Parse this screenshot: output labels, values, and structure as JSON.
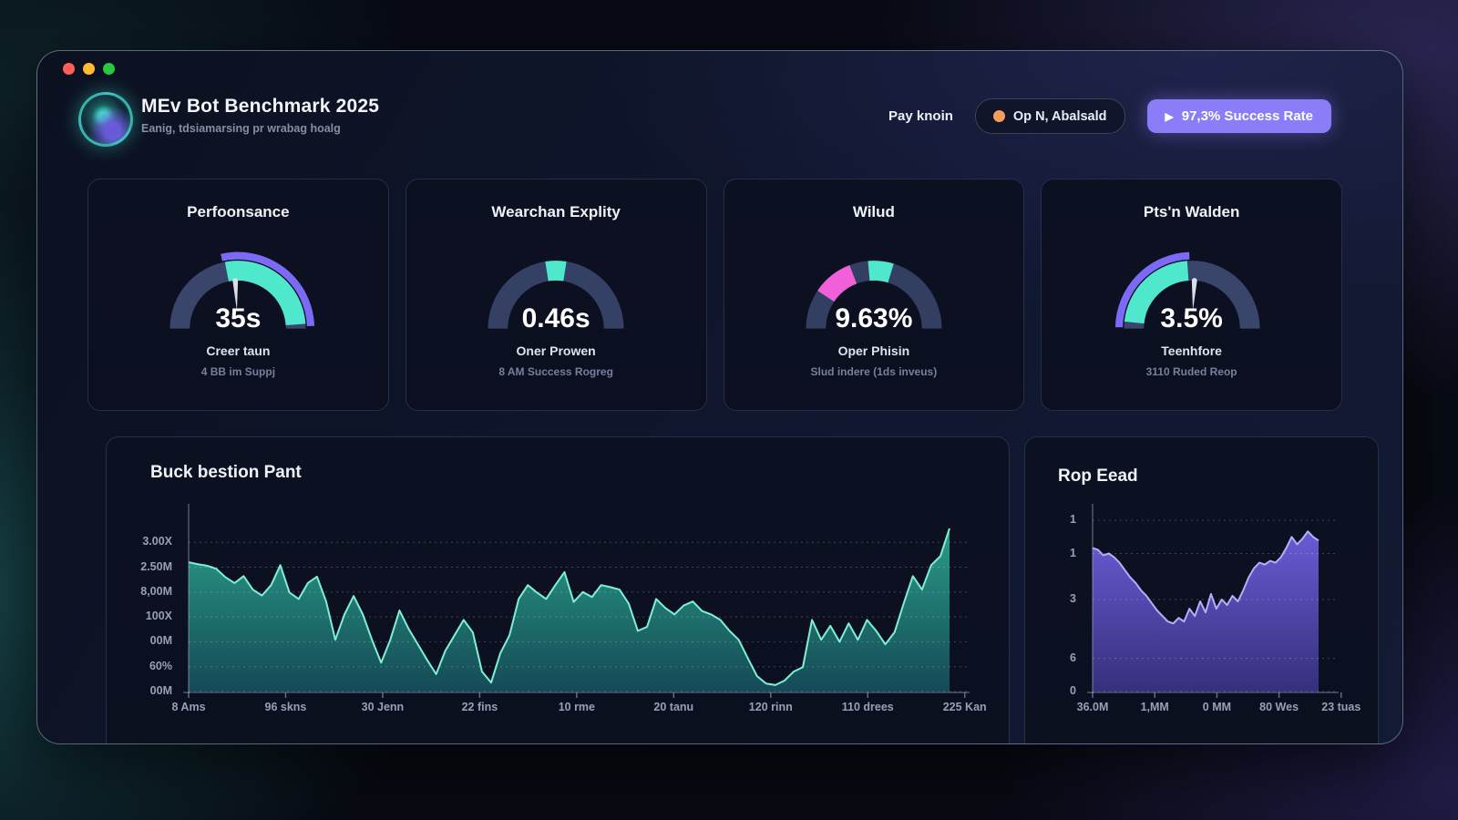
{
  "window_controls": {
    "colors": [
      "#ff5f57",
      "#febc2e",
      "#28c840"
    ]
  },
  "header": {
    "title": "MEv Bot Benchmark 2025",
    "subtitle": "Eanig, tdsiamarsing pr wrabag hoalg",
    "nav_label": "Pay knoin",
    "badge_label": "Op N, Abalsald",
    "badge_dot_color": "#f59e5b",
    "play_icon": "▶",
    "success_label": "97,3% Success Rate",
    "accent_color": "#8b7cf8"
  },
  "cards": [
    {
      "title": "Perfoonsance",
      "value": "35s",
      "subtitle": "Creer taun",
      "note": "4 BB im Suppj",
      "gauge": {
        "segments": [
          {
            "band": "main",
            "from": 180,
            "to": 0,
            "color": "#39456a"
          },
          {
            "band": "outer",
            "from": 103,
            "to": 2,
            "color": "#7c6af7"
          },
          {
            "band": "main",
            "from": 101,
            "to": 4,
            "color": "#4fe8cd"
          }
        ],
        "needle": 93
      }
    },
    {
      "title": "Wearchan Explity",
      "value": "0.46s",
      "subtitle": "Oner Prowen",
      "note": "8 AM Success Rogreg",
      "gauge": {
        "segments": [
          {
            "band": "main",
            "from": 180,
            "to": 0,
            "color": "#354164"
          },
          {
            "band": "main",
            "from": 99,
            "to": 81,
            "color": "#4fe8cd"
          }
        ],
        "needle": null
      }
    },
    {
      "title": "Wilud",
      "value": "9.63%",
      "subtitle": "Oper Phisin",
      "note": "Slud indere (1ds inveus)",
      "gauge": {
        "segments": [
          {
            "band": "main",
            "from": 180,
            "to": 0,
            "color": "#333f60"
          },
          {
            "band": "main",
            "from": 146,
            "to": 111,
            "color": "#f060d8"
          },
          {
            "band": "main",
            "from": 95,
            "to": 73,
            "color": "#4fe8cd"
          }
        ],
        "needle": null
      }
    },
    {
      "title": "Pts'n Walden",
      "value": "3.5%",
      "subtitle": "Teenhfore",
      "note": "3110 Ruded Reop",
      "gauge": {
        "segments": [
          {
            "band": "main",
            "from": 180,
            "to": 0,
            "color": "#39456a"
          },
          {
            "band": "outer",
            "from": 179,
            "to": 92,
            "color": "#7c6af7"
          },
          {
            "band": "main",
            "from": 174,
            "to": 94,
            "color": "#4fe8cd"
          }
        ],
        "needle": 87
      }
    }
  ],
  "chart_data": [
    {
      "type": "area",
      "title": "Buck bestion Pant",
      "x_labels": [
        "8 Ams",
        "96 skns",
        "30 Jenn",
        "22 fins",
        "10 rme",
        "20 tanu",
        "120 rinn",
        "110 drees",
        "225 Kan"
      ],
      "x_spread": 1.02,
      "y_ticks": [
        {
          "v": 0,
          "label": "00M"
        },
        {
          "v": 0.5,
          "label": "60%"
        },
        {
          "v": 1.0,
          "label": "00M"
        },
        {
          "v": 1.5,
          "label": "100X"
        },
        {
          "v": 2.0,
          "label": "8,00M"
        },
        {
          "v": 2.5,
          "label": "2.50M"
        },
        {
          "v": 3.0,
          "label": "3.00X"
        }
      ],
      "ylim": [
        0,
        3.7
      ],
      "values": [
        2.6,
        2.56,
        2.53,
        2.47,
        2.3,
        2.18,
        2.32,
        2.05,
        1.93,
        2.14,
        2.54,
        1.99,
        1.86,
        2.18,
        2.31,
        1.81,
        1.04,
        1.55,
        1.92,
        1.55,
        1.04,
        0.58,
        1.04,
        1.63,
        1.26,
        0.95,
        0.64,
        0.35,
        0.82,
        1.13,
        1.44,
        1.19,
        0.4,
        0.18,
        0.77,
        1.13,
        1.86,
        2.14,
        1.99,
        1.86,
        2.14,
        2.4,
        1.8,
        2.0,
        1.9,
        2.14,
        2.1,
        2.05,
        1.77,
        1.22,
        1.3,
        1.86,
        1.68,
        1.55,
        1.73,
        1.81,
        1.62,
        1.55,
        1.44,
        1.22,
        1.04,
        0.67,
        0.31,
        0.16,
        0.13,
        0.22,
        0.4,
        0.49,
        1.44,
        1.04,
        1.32,
        1.0,
        1.37,
        1.04,
        1.44,
        1.22,
        0.95,
        1.19,
        1.77,
        2.32,
        2.05,
        2.54,
        2.72,
        3.28
      ],
      "line_color": "#7df0d6",
      "fill_top": "#2da58f",
      "fill_bottom": "#16525e"
    },
    {
      "type": "area",
      "title": "Rop Eead",
      "x_labels": [
        "36.0M",
        "1,MM",
        "0 MM",
        "80 Wes",
        "23 tuas"
      ],
      "x_spread": 1.1,
      "y_ticks": [
        {
          "v": 0,
          "label": "0"
        },
        {
          "v": 0.18,
          "label": "6"
        },
        {
          "v": 0.5,
          "label": "3"
        },
        {
          "v": 0.75,
          "label": "1"
        },
        {
          "v": 0.93,
          "label": "1"
        }
      ],
      "ylim": [
        0,
        1.0
      ],
      "values": [
        0.78,
        0.77,
        0.74,
        0.75,
        0.73,
        0.7,
        0.66,
        0.62,
        0.59,
        0.55,
        0.52,
        0.48,
        0.44,
        0.41,
        0.38,
        0.37,
        0.4,
        0.38,
        0.45,
        0.41,
        0.49,
        0.43,
        0.53,
        0.45,
        0.5,
        0.47,
        0.52,
        0.49,
        0.55,
        0.62,
        0.67,
        0.7,
        0.69,
        0.71,
        0.7,
        0.73,
        0.78,
        0.84,
        0.8,
        0.83,
        0.87,
        0.84,
        0.82
      ],
      "line_color": "#b7adf8",
      "fill_top": "#6e60e0",
      "fill_bottom": "#3c3488"
    }
  ]
}
